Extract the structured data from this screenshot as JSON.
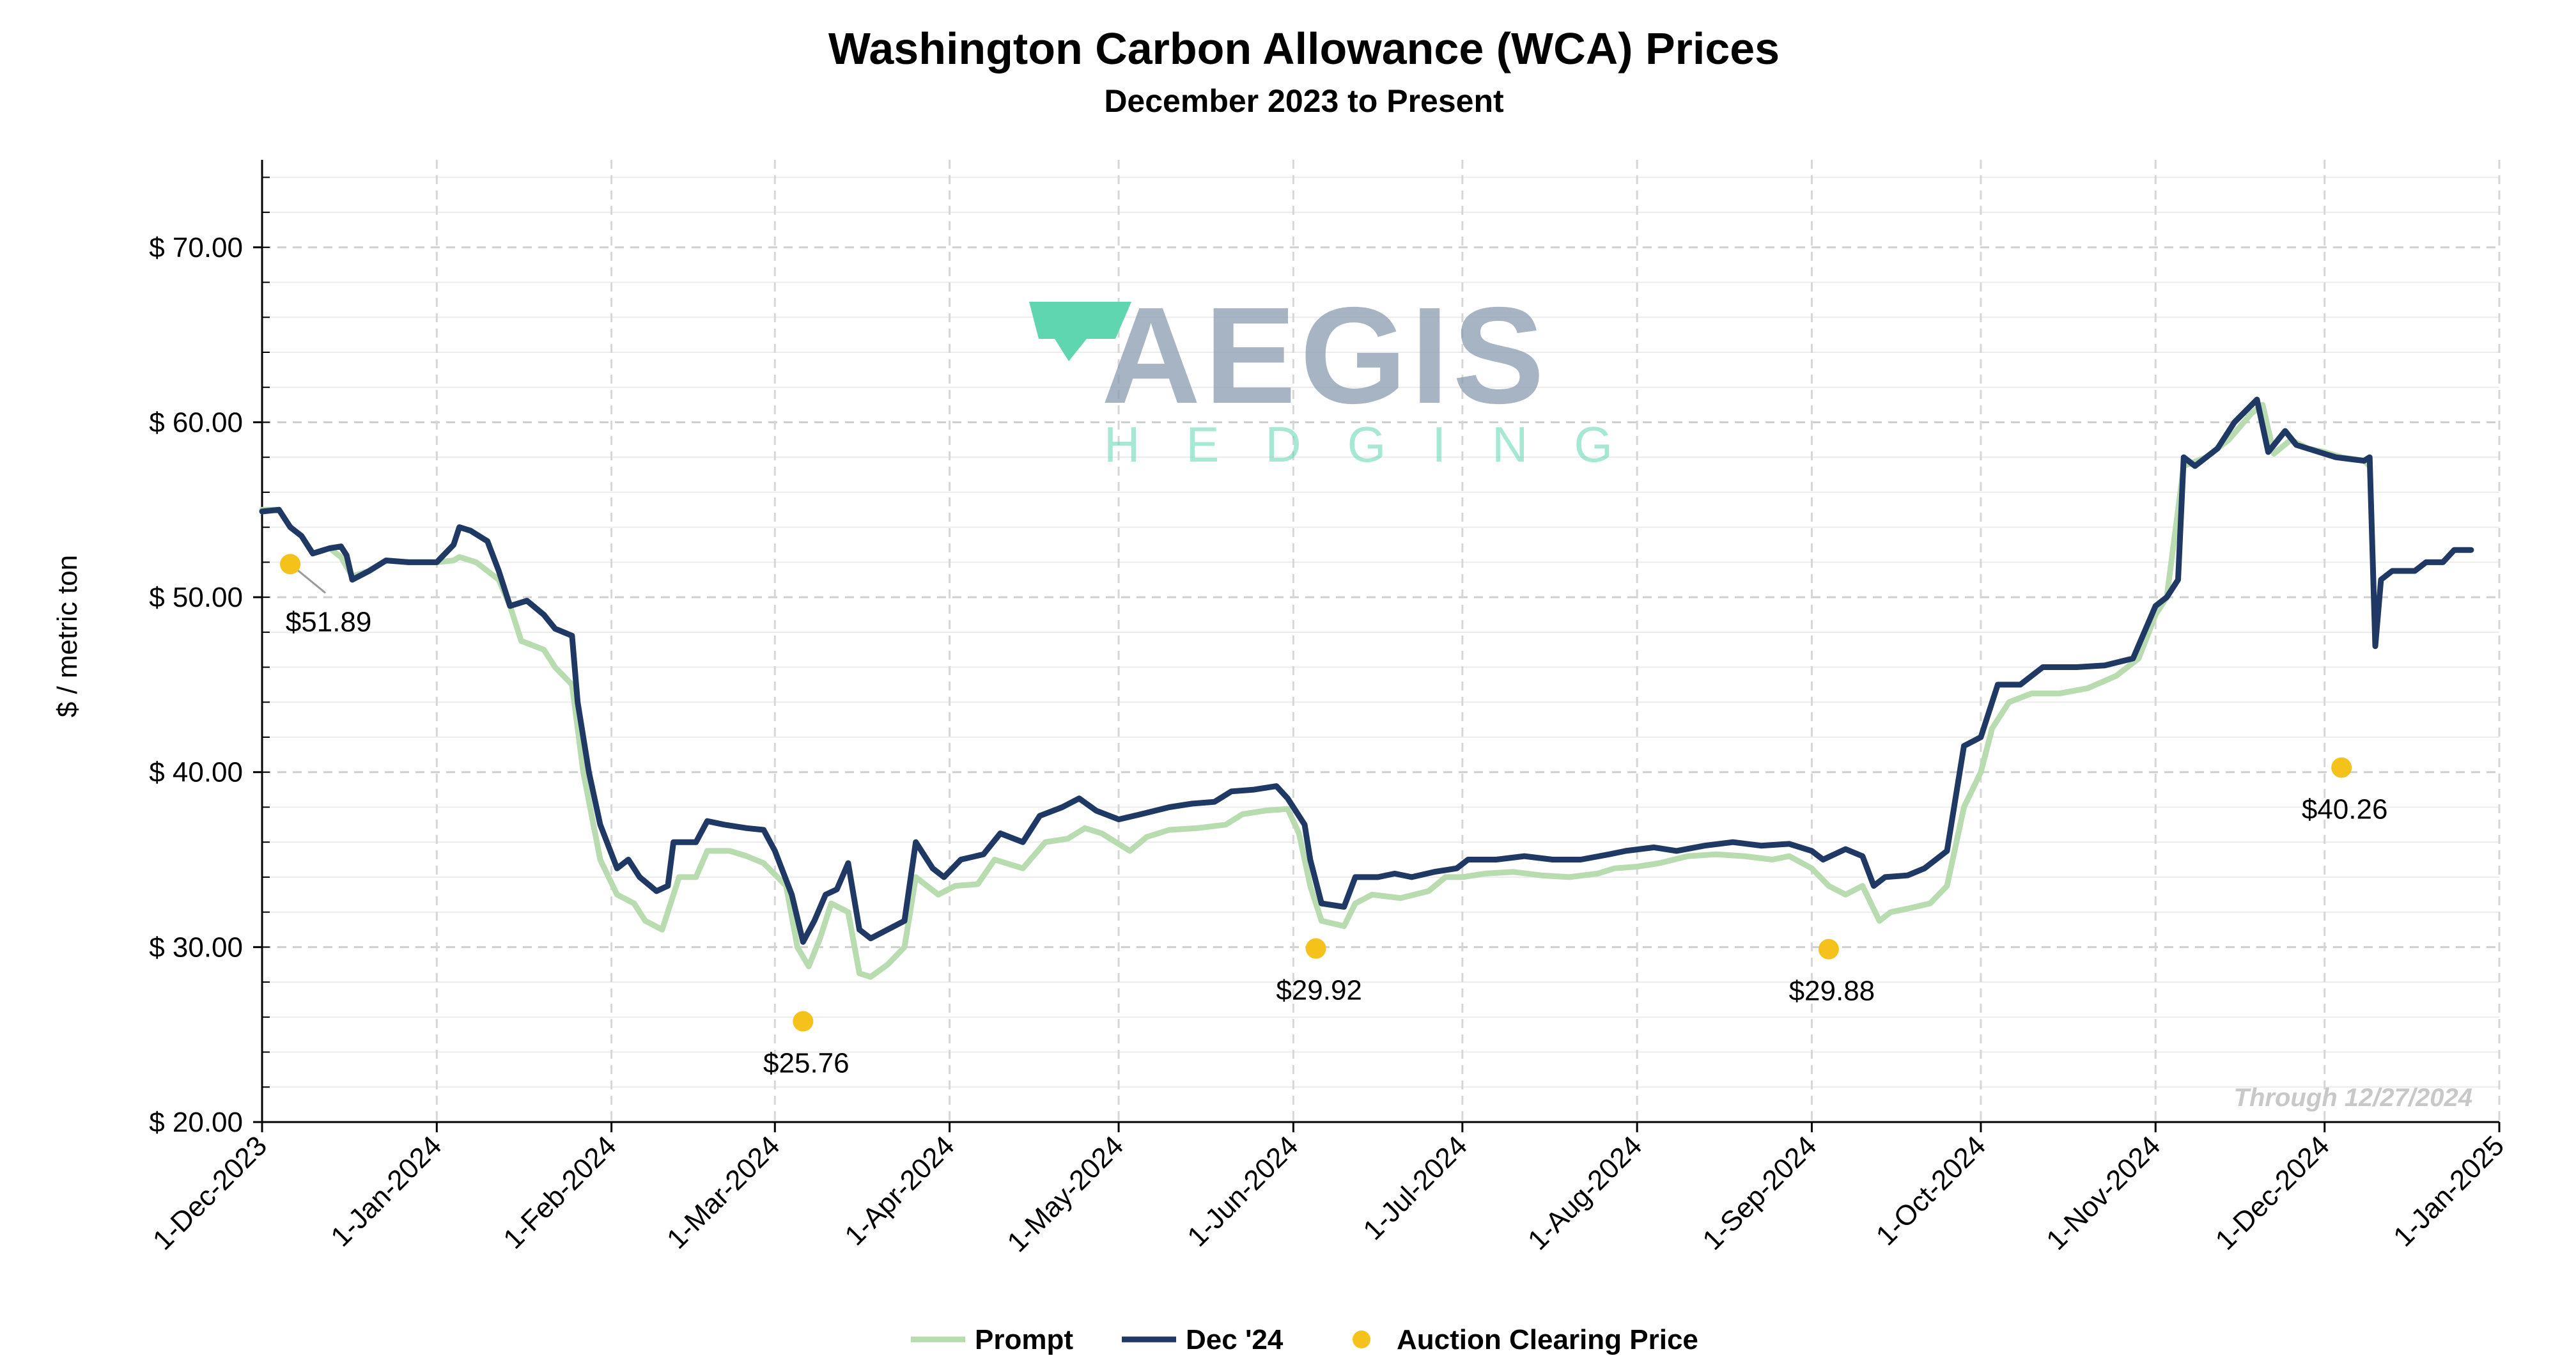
{
  "chart_data": {
    "type": "line",
    "title": "Washington Carbon Allowance (WCA) Prices",
    "subtitle": "December 2023 to Present",
    "ylabel": "$ / metric ton",
    "ylim": [
      20,
      75
    ],
    "xlim": [
      "2023-12-01",
      "2025-01-01"
    ],
    "y_ticks": [
      20,
      30,
      40,
      50,
      60,
      70
    ],
    "y_tick_labels": [
      "$ 20.00",
      "$ 30.00",
      "$ 40.00",
      "$ 50.00",
      "$ 60.00",
      "$ 70.00"
    ],
    "x_ticks": [
      "2023-12-01",
      "2024-01-01",
      "2024-02-01",
      "2024-03-01",
      "2024-04-01",
      "2024-05-01",
      "2024-06-01",
      "2024-07-01",
      "2024-08-01",
      "2024-09-01",
      "2024-10-01",
      "2024-11-01",
      "2024-12-01",
      "2025-01-01"
    ],
    "x_tick_labels": [
      "1-Dec-2023",
      "1-Jan-2024",
      "1-Feb-2024",
      "1-Mar-2024",
      "1-Apr-2024",
      "1-May-2024",
      "1-Jun-2024",
      "1-Jul-2024",
      "1-Aug-2024",
      "1-Sep-2024",
      "1-Oct-2024",
      "1-Nov-2024",
      "1-Dec-2024",
      "1-Jan-2025"
    ],
    "grid": true,
    "legend_position": "bottom",
    "annotation": "Through 12/27/2024",
    "series": [
      {
        "name": "Prompt",
        "color": "#b9dbb0",
        "points": [
          [
            "2023-12-01",
            55.0
          ],
          [
            "2023-12-04",
            55.0
          ],
          [
            "2023-12-06",
            54.0
          ],
          [
            "2023-12-08",
            53.5
          ],
          [
            "2023-12-10",
            52.5
          ],
          [
            "2023-12-13",
            52.8
          ],
          [
            "2023-12-15",
            52.3
          ],
          [
            "2023-12-17",
            51.2
          ],
          [
            "2023-12-20",
            51.5
          ],
          [
            "2023-12-23",
            52.1
          ],
          [
            "2023-12-27",
            52.0
          ],
          [
            "2024-01-01",
            52.0
          ],
          [
            "2024-01-04",
            52.1
          ],
          [
            "2024-01-05",
            52.3
          ],
          [
            "2024-01-08",
            52.0
          ],
          [
            "2024-01-10",
            51.5
          ],
          [
            "2024-01-12",
            51.0
          ],
          [
            "2024-01-14",
            49.5
          ],
          [
            "2024-01-16",
            47.5
          ],
          [
            "2024-01-20",
            47.0
          ],
          [
            "2024-01-22",
            46.0
          ],
          [
            "2024-01-25",
            45.0
          ],
          [
            "2024-01-27",
            40.0
          ],
          [
            "2024-01-30",
            35.0
          ],
          [
            "2024-02-02",
            33.0
          ],
          [
            "2024-02-05",
            32.5
          ],
          [
            "2024-02-07",
            31.5
          ],
          [
            "2024-02-10",
            31.0
          ],
          [
            "2024-02-13",
            34.0
          ],
          [
            "2024-02-16",
            34.0
          ],
          [
            "2024-02-18",
            35.5
          ],
          [
            "2024-02-22",
            35.5
          ],
          [
            "2024-02-25",
            35.2
          ],
          [
            "2024-02-28",
            34.8
          ],
          [
            "2024-03-03",
            33.5
          ],
          [
            "2024-03-05",
            30.0
          ],
          [
            "2024-03-07",
            28.9
          ],
          [
            "2024-03-09",
            30.5
          ],
          [
            "2024-03-11",
            32.5
          ],
          [
            "2024-03-14",
            32.0
          ],
          [
            "2024-03-16",
            28.5
          ],
          [
            "2024-03-18",
            28.3
          ],
          [
            "2024-03-21",
            29.0
          ],
          [
            "2024-03-24",
            30.0
          ],
          [
            "2024-03-26",
            34.0
          ],
          [
            "2024-03-30",
            33.0
          ],
          [
            "2024-04-02",
            33.5
          ],
          [
            "2024-04-06",
            33.6
          ],
          [
            "2024-04-09",
            35.0
          ],
          [
            "2024-04-14",
            34.5
          ],
          [
            "2024-04-18",
            36.0
          ],
          [
            "2024-04-22",
            36.2
          ],
          [
            "2024-04-25",
            36.8
          ],
          [
            "2024-04-28",
            36.5
          ],
          [
            "2024-05-03",
            35.5
          ],
          [
            "2024-05-06",
            36.3
          ],
          [
            "2024-05-10",
            36.7
          ],
          [
            "2024-05-15",
            36.8
          ],
          [
            "2024-05-20",
            37.0
          ],
          [
            "2024-05-23",
            37.6
          ],
          [
            "2024-05-27",
            37.8
          ],
          [
            "2024-05-31",
            37.9
          ],
          [
            "2024-06-02",
            36.5
          ],
          [
            "2024-06-04",
            33.5
          ],
          [
            "2024-06-06",
            31.5
          ],
          [
            "2024-06-10",
            31.2
          ],
          [
            "2024-06-12",
            32.5
          ],
          [
            "2024-06-15",
            33.0
          ],
          [
            "2024-06-20",
            32.8
          ],
          [
            "2024-06-25",
            33.2
          ],
          [
            "2024-06-28",
            34.0
          ],
          [
            "2024-07-01",
            34.0
          ],
          [
            "2024-07-05",
            34.2
          ],
          [
            "2024-07-10",
            34.3
          ],
          [
            "2024-07-15",
            34.1
          ],
          [
            "2024-07-20",
            34.0
          ],
          [
            "2024-07-25",
            34.2
          ],
          [
            "2024-07-28",
            34.5
          ],
          [
            "2024-08-01",
            34.6
          ],
          [
            "2024-08-05",
            34.8
          ],
          [
            "2024-08-10",
            35.2
          ],
          [
            "2024-08-15",
            35.3
          ],
          [
            "2024-08-20",
            35.2
          ],
          [
            "2024-08-25",
            35.0
          ],
          [
            "2024-08-28",
            35.2
          ],
          [
            "2024-09-01",
            34.5
          ],
          [
            "2024-09-04",
            33.5
          ],
          [
            "2024-09-07",
            33.0
          ],
          [
            "2024-09-10",
            33.5
          ],
          [
            "2024-09-13",
            31.5
          ],
          [
            "2024-09-15",
            32.0
          ],
          [
            "2024-09-18",
            32.2
          ],
          [
            "2024-09-22",
            32.5
          ],
          [
            "2024-09-25",
            33.5
          ],
          [
            "2024-09-28",
            38.0
          ],
          [
            "2024-10-01",
            40.0
          ],
          [
            "2024-10-03",
            42.5
          ],
          [
            "2024-10-06",
            44.0
          ],
          [
            "2024-10-10",
            44.5
          ],
          [
            "2024-10-15",
            44.5
          ],
          [
            "2024-10-20",
            44.8
          ],
          [
            "2024-10-25",
            45.5
          ],
          [
            "2024-10-29",
            46.5
          ],
          [
            "2024-11-01",
            49.0
          ],
          [
            "2024-11-03",
            50.0
          ],
          [
            "2024-11-06",
            57.5
          ],
          [
            "2024-11-10",
            58.0
          ],
          [
            "2024-11-14",
            59.0
          ],
          [
            "2024-11-18",
            60.5
          ],
          [
            "2024-11-20",
            61.0
          ],
          [
            "2024-11-22",
            58.2
          ],
          [
            "2024-11-25",
            59.0
          ],
          [
            "2024-11-28",
            58.5
          ],
          [
            "2024-12-01",
            58.3
          ],
          [
            "2024-12-04",
            58.0
          ],
          [
            "2024-12-08",
            57.8
          ],
          [
            "2024-12-09",
            57.5
          ]
        ]
      },
      {
        "name": "Dec '24",
        "color": "#1f3864",
        "points": [
          [
            "2023-12-01",
            54.9
          ],
          [
            "2023-12-04",
            55.0
          ],
          [
            "2023-12-06",
            54.0
          ],
          [
            "2023-12-08",
            53.5
          ],
          [
            "2023-12-10",
            52.5
          ],
          [
            "2023-12-13",
            52.8
          ],
          [
            "2023-12-15",
            52.9
          ],
          [
            "2023-12-16",
            52.4
          ],
          [
            "2023-12-17",
            51.0
          ],
          [
            "2023-12-20",
            51.5
          ],
          [
            "2023-12-23",
            52.1
          ],
          [
            "2023-12-27",
            52.0
          ],
          [
            "2024-01-01",
            52.0
          ],
          [
            "2024-01-04",
            53.0
          ],
          [
            "2024-01-05",
            54.0
          ],
          [
            "2024-01-07",
            53.8
          ],
          [
            "2024-01-10",
            53.2
          ],
          [
            "2024-01-12",
            51.5
          ],
          [
            "2024-01-14",
            49.5
          ],
          [
            "2024-01-17",
            49.8
          ],
          [
            "2024-01-20",
            49.0
          ],
          [
            "2024-01-22",
            48.2
          ],
          [
            "2024-01-25",
            47.8
          ],
          [
            "2024-01-26",
            44.0
          ],
          [
            "2024-01-28",
            40.0
          ],
          [
            "2024-01-30",
            37.0
          ],
          [
            "2024-02-02",
            34.5
          ],
          [
            "2024-02-04",
            35.0
          ],
          [
            "2024-02-06",
            34.0
          ],
          [
            "2024-02-09",
            33.2
          ],
          [
            "2024-02-11",
            33.5
          ],
          [
            "2024-02-12",
            36.0
          ],
          [
            "2024-02-16",
            36.0
          ],
          [
            "2024-02-18",
            37.2
          ],
          [
            "2024-02-21",
            37.0
          ],
          [
            "2024-02-25",
            36.8
          ],
          [
            "2024-02-28",
            36.7
          ],
          [
            "2024-03-01",
            35.5
          ],
          [
            "2024-03-04",
            33.0
          ],
          [
            "2024-03-06",
            30.3
          ],
          [
            "2024-03-08",
            31.5
          ],
          [
            "2024-03-10",
            33.0
          ],
          [
            "2024-03-12",
            33.3
          ],
          [
            "2024-03-14",
            34.8
          ],
          [
            "2024-03-16",
            31.0
          ],
          [
            "2024-03-18",
            30.5
          ],
          [
            "2024-03-21",
            31.0
          ],
          [
            "2024-03-24",
            31.5
          ],
          [
            "2024-03-26",
            36.0
          ],
          [
            "2024-03-29",
            34.5
          ],
          [
            "2024-03-31",
            34.0
          ],
          [
            "2024-04-03",
            35.0
          ],
          [
            "2024-04-07",
            35.3
          ],
          [
            "2024-04-10",
            36.5
          ],
          [
            "2024-04-14",
            36.0
          ],
          [
            "2024-04-17",
            37.5
          ],
          [
            "2024-04-21",
            38.0
          ],
          [
            "2024-04-24",
            38.5
          ],
          [
            "2024-04-27",
            37.8
          ],
          [
            "2024-05-01",
            37.3
          ],
          [
            "2024-05-05",
            37.6
          ],
          [
            "2024-05-10",
            38.0
          ],
          [
            "2024-05-14",
            38.2
          ],
          [
            "2024-05-18",
            38.3
          ],
          [
            "2024-05-21",
            38.9
          ],
          [
            "2024-05-25",
            39.0
          ],
          [
            "2024-05-29",
            39.2
          ],
          [
            "2024-05-31",
            38.5
          ],
          [
            "2024-06-03",
            37.0
          ],
          [
            "2024-06-04",
            35.0
          ],
          [
            "2024-06-06",
            32.5
          ],
          [
            "2024-06-10",
            32.3
          ],
          [
            "2024-06-12",
            34.0
          ],
          [
            "2024-06-16",
            34.0
          ],
          [
            "2024-06-19",
            34.2
          ],
          [
            "2024-06-22",
            34.0
          ],
          [
            "2024-06-26",
            34.3
          ],
          [
            "2024-06-30",
            34.5
          ],
          [
            "2024-07-02",
            35.0
          ],
          [
            "2024-07-07",
            35.0
          ],
          [
            "2024-07-12",
            35.2
          ],
          [
            "2024-07-17",
            35.0
          ],
          [
            "2024-07-22",
            35.0
          ],
          [
            "2024-07-27",
            35.3
          ],
          [
            "2024-07-30",
            35.5
          ],
          [
            "2024-08-04",
            35.7
          ],
          [
            "2024-08-08",
            35.5
          ],
          [
            "2024-08-13",
            35.8
          ],
          [
            "2024-08-18",
            36.0
          ],
          [
            "2024-08-23",
            35.8
          ],
          [
            "2024-08-28",
            35.9
          ],
          [
            "2024-09-01",
            35.5
          ],
          [
            "2024-09-03",
            35.0
          ],
          [
            "2024-09-07",
            35.6
          ],
          [
            "2024-09-10",
            35.2
          ],
          [
            "2024-09-12",
            33.5
          ],
          [
            "2024-09-14",
            34.0
          ],
          [
            "2024-09-18",
            34.1
          ],
          [
            "2024-09-21",
            34.5
          ],
          [
            "2024-09-25",
            35.5
          ],
          [
            "2024-09-28",
            41.5
          ],
          [
            "2024-10-01",
            42.0
          ],
          [
            "2024-10-04",
            45.0
          ],
          [
            "2024-10-08",
            45.0
          ],
          [
            "2024-10-12",
            46.0
          ],
          [
            "2024-10-18",
            46.0
          ],
          [
            "2024-10-23",
            46.1
          ],
          [
            "2024-10-28",
            46.5
          ],
          [
            "2024-11-01",
            49.5
          ],
          [
            "2024-11-03",
            50.0
          ],
          [
            "2024-11-05",
            51.0
          ],
          [
            "2024-11-06",
            58.0
          ],
          [
            "2024-11-08",
            57.5
          ],
          [
            "2024-11-12",
            58.5
          ],
          [
            "2024-11-15",
            60.0
          ],
          [
            "2024-11-19",
            61.3
          ],
          [
            "2024-11-21",
            58.3
          ],
          [
            "2024-11-24",
            59.5
          ],
          [
            "2024-11-26",
            58.7
          ],
          [
            "2024-11-30",
            58.3
          ],
          [
            "2024-12-03",
            58.0
          ],
          [
            "2024-12-08",
            57.8
          ],
          [
            "2024-12-09",
            58.0
          ],
          [
            "2024-12-10",
            47.2
          ],
          [
            "2024-12-11",
            51.0
          ],
          [
            "2024-12-13",
            51.5
          ],
          [
            "2024-12-17",
            51.5
          ],
          [
            "2024-12-19",
            52.0
          ],
          [
            "2024-12-22",
            52.0
          ],
          [
            "2024-12-24",
            52.7
          ],
          [
            "2024-12-27",
            52.7
          ]
        ]
      },
      {
        "name": "Auction Clearing Price",
        "color": "#f4c21b",
        "type": "scatter",
        "points": [
          {
            "x": "2023-12-06",
            "y": 51.89,
            "label": "$51.89"
          },
          {
            "x": "2024-03-06",
            "y": 25.76,
            "label": "$25.76"
          },
          {
            "x": "2024-06-05",
            "y": 29.92,
            "label": "$29.92"
          },
          {
            "x": "2024-09-04",
            "y": 29.88,
            "label": "$29.88"
          },
          {
            "x": "2024-12-04",
            "y": 40.26,
            "label": "$40.26"
          }
        ]
      }
    ]
  },
  "watermark": {
    "brand": "AEGIS",
    "tagline": "HEDGING",
    "brand_color": "#8a9bb0",
    "accent_color": "#5fd6b0"
  }
}
